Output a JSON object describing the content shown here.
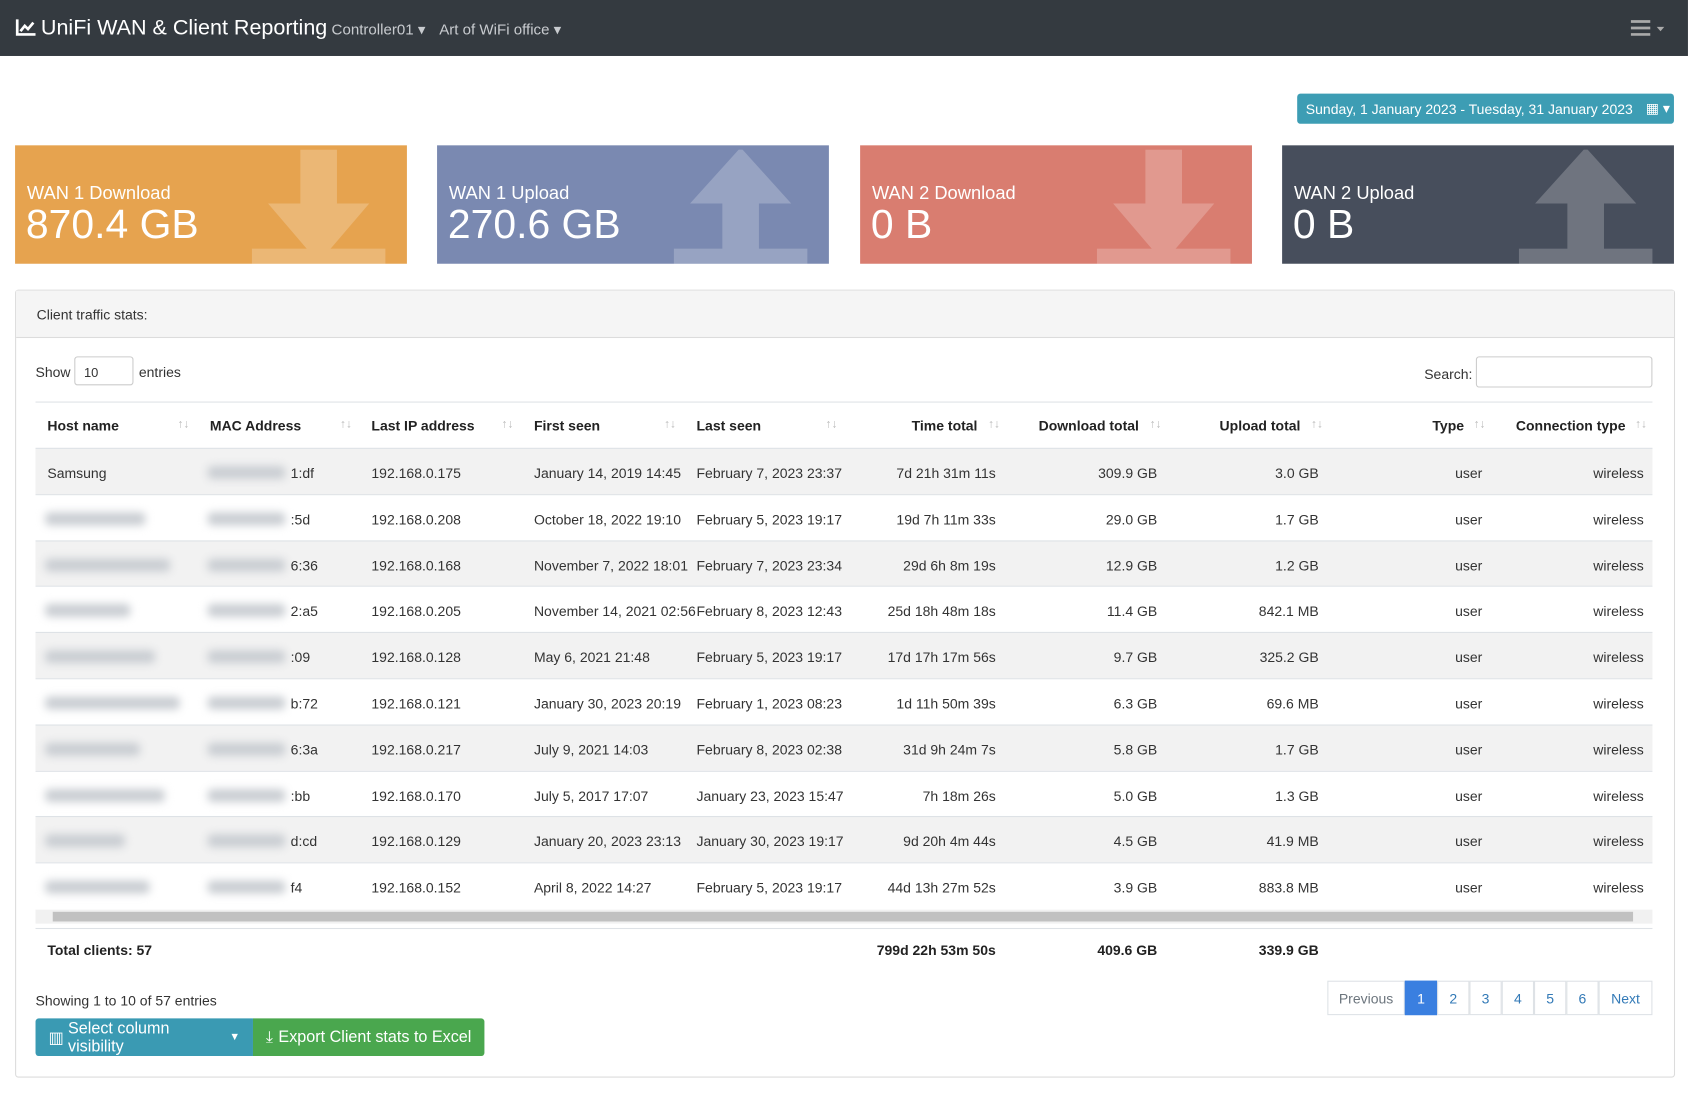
{
  "header": {
    "brand": "UniFi WAN & Client Reporting",
    "controller": "Controller01",
    "site": "Art of WiFi office",
    "date_range": "Sunday, 1 January 2023 - Tuesday, 31 January 2023"
  },
  "cards": [
    {
      "label": "WAN 1 Download",
      "value": "870.4 GB"
    },
    {
      "label": "WAN 1 Upload",
      "value": "270.6 GB"
    },
    {
      "label": "WAN 2 Download",
      "value": "0 B"
    },
    {
      "label": "WAN 2 Upload",
      "value": "0 B"
    }
  ],
  "panel": {
    "title": "Client traffic stats:",
    "show": "Show",
    "length": "10",
    "entries": "entries",
    "search": "Search:"
  },
  "table": {
    "columns": [
      "Host name",
      "MAC Address",
      "Last IP address",
      "First seen",
      "Last seen",
      "Time total",
      "Download total",
      "Upload total",
      "Type",
      "Connection type"
    ],
    "rows": [
      {
        "host": "Samsung",
        "mac": "1:df",
        "ip": "192.168.0.175",
        "first": "January 14, 2019 14:45",
        "last": "February 7, 2023 23:37",
        "time": "7d 21h 31m 11s",
        "download": "309.9 GB",
        "upload": "3.0 GB",
        "type": "user",
        "conn": "wireless"
      },
      {
        "mac": ":5d",
        "ip": "192.168.0.208",
        "first": "October 18, 2022 19:10",
        "last": "February 5, 2023 19:17",
        "time": "19d 7h 11m 33s",
        "download": "29.0 GB",
        "upload": "1.7 GB",
        "type": "user",
        "conn": "wireless"
      },
      {
        "mac": "6:36",
        "ip": "192.168.0.168",
        "first": "November 7, 2022 18:01",
        "last": "February 7, 2023 23:34",
        "time": "29d 6h 8m 19s",
        "download": "12.9 GB",
        "upload": "1.2 GB",
        "type": "user",
        "conn": "wireless"
      },
      {
        "mac": "2:a5",
        "ip": "192.168.0.205",
        "first": "November 14, 2021 02:56",
        "last": "February 8, 2023 12:43",
        "time": "25d 18h 48m 18s",
        "download": "11.4 GB",
        "upload": "842.1 MB",
        "type": "user",
        "conn": "wireless"
      },
      {
        "mac": ":09",
        "ip": "192.168.0.128",
        "first": "May 6, 2021 21:48",
        "last": "February 5, 2023 19:17",
        "time": "17d 17h 17m 56s",
        "download": "9.7 GB",
        "upload": "325.2 GB",
        "type": "user",
        "conn": "wireless"
      },
      {
        "mac": "b:72",
        "ip": "192.168.0.121",
        "first": "January 30, 2023 20:19",
        "last": "February 1, 2023 08:23",
        "time": "1d 11h 50m 39s",
        "download": "6.3 GB",
        "upload": "69.6 MB",
        "type": "user",
        "conn": "wireless"
      },
      {
        "mac": "6:3a",
        "ip": "192.168.0.217",
        "first": "July 9, 2021 14:03",
        "last": "February 8, 2023 02:38",
        "time": "31d 9h 24m 7s",
        "download": "5.8 GB",
        "upload": "1.7 GB",
        "type": "user",
        "conn": "wireless"
      },
      {
        "mac": ":bb",
        "ip": "192.168.0.170",
        "first": "July 5, 2017 17:07",
        "last": "January 23, 2023 15:47",
        "time": "7h 18m 26s",
        "download": "5.0 GB",
        "upload": "1.3 GB",
        "type": "user",
        "conn": "wireless"
      },
      {
        "mac": "d:cd",
        "ip": "192.168.0.129",
        "first": "January 20, 2023 23:13",
        "last": "January 30, 2023 19:17",
        "time": "9d 20h 4m 44s",
        "download": "4.5 GB",
        "upload": "41.9 MB",
        "type": "user",
        "conn": "wireless"
      },
      {
        "mac": "f4",
        "ip": "192.168.0.152",
        "first": "April 8, 2022 14:27",
        "last": "February 5, 2023 19:17",
        "time": "44d 13h 27m 52s",
        "download": "3.9 GB",
        "upload": "883.8 MB",
        "type": "user",
        "conn": "wireless"
      }
    ],
    "totals": {
      "label": "Total clients: 57",
      "time": "799d 22h 53m 50s",
      "download": "409.6 GB",
      "upload": "339.9 GB"
    }
  },
  "info": "Showing 1 to 10 of 57 entries",
  "pagination": [
    "Previous",
    "1",
    "2",
    "3",
    "4",
    "5",
    "6",
    "Next"
  ],
  "buttons": [
    "Select column visibility",
    "Export Client stats to Excel"
  ]
}
